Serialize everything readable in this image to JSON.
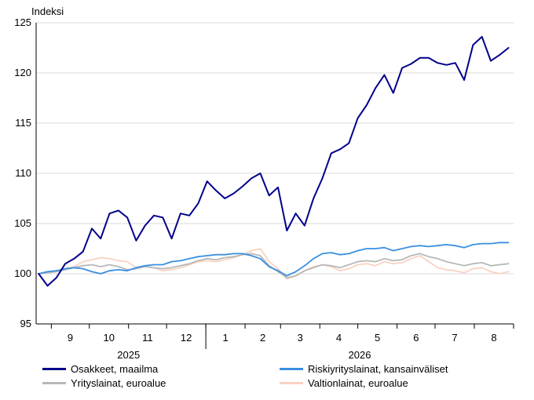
{
  "chart_data": {
    "type": "line",
    "title": "",
    "ylabel": "Indeksi",
    "ylim": [
      95,
      125
    ],
    "yticks": [
      95,
      100,
      105,
      110,
      115,
      120,
      125
    ],
    "month_labels": [
      "9",
      "10",
      "11",
      "12",
      "1",
      "2",
      "3",
      "4",
      "5",
      "6",
      "7",
      "8"
    ],
    "year_labels": [
      "2025",
      "2026"
    ],
    "grid": "horizontal",
    "legend": "bottom",
    "x_note": "weekly points from late Aug 2025 to late Aug 2026",
    "x": [
      "2025-08-22",
      "2025-08-29",
      "2025-09-05",
      "2025-09-12",
      "2025-09-19",
      "2025-09-26",
      "2025-10-03",
      "2025-10-10",
      "2025-10-17",
      "2025-10-24",
      "2025-10-31",
      "2025-11-07",
      "2025-11-14",
      "2025-11-21",
      "2025-11-28",
      "2025-12-05",
      "2025-12-12",
      "2025-12-19",
      "2025-12-26",
      "2026-01-02",
      "2026-01-09",
      "2026-01-16",
      "2026-01-23",
      "2026-01-30",
      "2026-02-06",
      "2026-02-13",
      "2026-02-20",
      "2026-02-27",
      "2026-03-06",
      "2026-03-13",
      "2026-03-20",
      "2026-03-27",
      "2026-04-03",
      "2026-04-10",
      "2026-04-17",
      "2026-04-24",
      "2026-05-01",
      "2026-05-08",
      "2026-05-15",
      "2026-05-22",
      "2026-05-29",
      "2026-06-05",
      "2026-06-12",
      "2026-06-19",
      "2026-06-26",
      "2026-07-03",
      "2026-07-10",
      "2026-07-17",
      "2026-07-24",
      "2026-07-31",
      "2026-08-07",
      "2026-08-14",
      "2026-08-21",
      "2026-08-28"
    ],
    "series": [
      {
        "name": "Osakkeet, maailma",
        "color": "#00008b",
        "values": [
          100.0,
          98.8,
          99.6,
          101.0,
          101.5,
          102.2,
          104.5,
          103.5,
          106.0,
          106.3,
          105.6,
          103.3,
          104.8,
          105.8,
          105.6,
          103.5,
          106.0,
          105.8,
          107.0,
          109.2,
          108.3,
          107.5,
          108.0,
          108.7,
          109.5,
          110.0,
          107.8,
          108.6,
          104.3,
          106.0,
          104.8,
          107.5,
          109.5,
          112.0,
          112.4,
          113.0,
          115.5,
          116.8,
          118.5,
          119.8,
          118.0,
          120.5,
          120.9,
          121.5,
          121.5,
          121.0,
          120.8,
          121.0,
          119.3,
          122.8,
          123.6,
          121.2,
          121.8,
          122.5
        ]
      },
      {
        "name": "Riskiyrityslainat, kansainväliset",
        "color": "#3a8fe0",
        "values": [
          100.0,
          100.2,
          100.3,
          100.5,
          100.6,
          100.5,
          100.2,
          100.0,
          100.3,
          100.4,
          100.3,
          100.6,
          100.8,
          100.9,
          100.9,
          101.2,
          101.3,
          101.5,
          101.7,
          101.8,
          101.9,
          101.9,
          102.0,
          102.0,
          101.8,
          101.5,
          100.7,
          100.3,
          99.8,
          100.2,
          100.8,
          101.5,
          102.0,
          102.1,
          101.9,
          102.0,
          102.3,
          102.5,
          102.5,
          102.6,
          102.3,
          102.5,
          102.7,
          102.8,
          102.7,
          102.8,
          102.9,
          102.8,
          102.6,
          102.9,
          103.0,
          103.0,
          103.1,
          103.1
        ]
      },
      {
        "name": "Yrityslainat, euroalue",
        "color": "#b8b8b8",
        "values": [
          100.0,
          100.1,
          100.2,
          100.4,
          100.6,
          100.8,
          100.9,
          100.7,
          100.9,
          100.7,
          100.4,
          100.5,
          100.7,
          100.6,
          100.5,
          100.6,
          100.8,
          101.0,
          101.3,
          101.5,
          101.4,
          101.6,
          101.7,
          101.9,
          102.0,
          101.8,
          100.8,
          100.2,
          99.6,
          99.8,
          100.3,
          100.6,
          100.9,
          100.8,
          100.6,
          100.9,
          101.2,
          101.3,
          101.2,
          101.5,
          101.3,
          101.4,
          101.8,
          102.0,
          101.7,
          101.5,
          101.2,
          101.0,
          100.8,
          101.0,
          101.1,
          100.8,
          100.9,
          101.0
        ]
      },
      {
        "name": "Valtionlainat, euroalue",
        "color": "#f8d2c2",
        "values": [
          100.0,
          100.1,
          100.2,
          100.5,
          100.7,
          101.2,
          101.4,
          101.6,
          101.5,
          101.3,
          101.2,
          100.6,
          100.8,
          100.6,
          100.3,
          100.4,
          100.6,
          100.9,
          101.2,
          101.3,
          101.2,
          101.4,
          101.6,
          101.9,
          102.3,
          102.5,
          101.2,
          100.5,
          99.5,
          99.8,
          100.3,
          100.7,
          100.9,
          100.7,
          100.3,
          100.5,
          100.9,
          101.0,
          100.8,
          101.2,
          101.0,
          101.1,
          101.5,
          101.8,
          101.2,
          100.6,
          100.4,
          100.3,
          100.1,
          100.5,
          100.6,
          100.2,
          100.0,
          100.2
        ]
      }
    ]
  }
}
